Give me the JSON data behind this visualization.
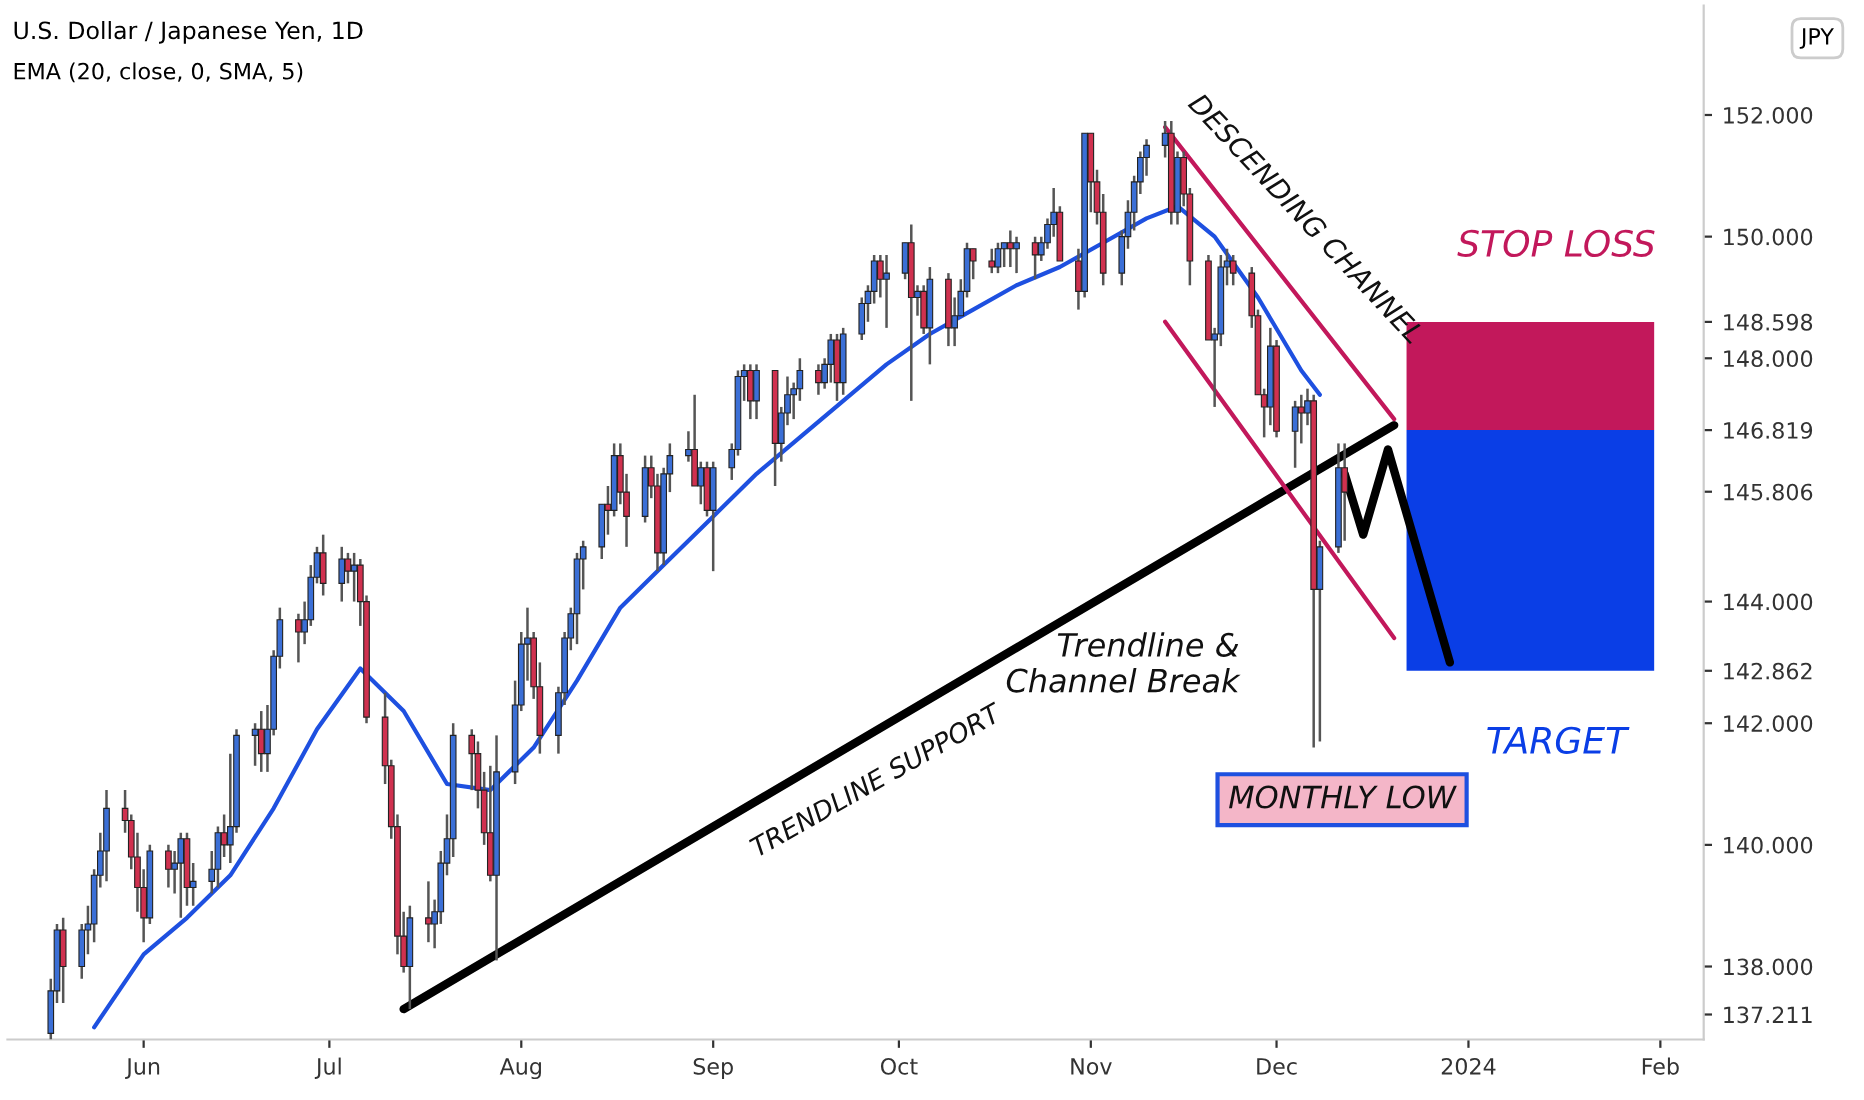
{
  "chart_data": {
    "type": "candlestick",
    "title": "U.S. Dollar / Japanese Yen, 1D",
    "subtitle": "EMA (20, close, 0, SMA, 5)",
    "ylabel": "JPY",
    "x": [
      "2023-05-17",
      "2023-05-18",
      "2023-05-19",
      "2023-05-22",
      "2023-05-23",
      "2023-05-24",
      "2023-05-25",
      "2023-05-26",
      "2023-05-29",
      "2023-05-30",
      "2023-05-31",
      "2023-06-01",
      "2023-06-02",
      "2023-06-05",
      "2023-06-06",
      "2023-06-07",
      "2023-06-08",
      "2023-06-09",
      "2023-06-12",
      "2023-06-13",
      "2023-06-14",
      "2023-06-15",
      "2023-06-16",
      "2023-06-19",
      "2023-06-20",
      "2023-06-21",
      "2023-06-22",
      "2023-06-23",
      "2023-06-26",
      "2023-06-27",
      "2023-06-28",
      "2023-06-29",
      "2023-06-30",
      "2023-07-03",
      "2023-07-04",
      "2023-07-05",
      "2023-07-06",
      "2023-07-07",
      "2023-07-10",
      "2023-07-11",
      "2023-07-12",
      "2023-07-13",
      "2023-07-14",
      "2023-07-17",
      "2023-07-18",
      "2023-07-19",
      "2023-07-20",
      "2023-07-21",
      "2023-07-24",
      "2023-07-25",
      "2023-07-26",
      "2023-07-27",
      "2023-07-28",
      "2023-07-31",
      "2023-08-01",
      "2023-08-02",
      "2023-08-03",
      "2023-08-04",
      "2023-08-07",
      "2023-08-08",
      "2023-08-09",
      "2023-08-10",
      "2023-08-11",
      "2023-08-14",
      "2023-08-15",
      "2023-08-16",
      "2023-08-17",
      "2023-08-18",
      "2023-08-21",
      "2023-08-22",
      "2023-08-23",
      "2023-08-24",
      "2023-08-25",
      "2023-08-28",
      "2023-08-29",
      "2023-08-30",
      "2023-08-31",
      "2023-09-01",
      "2023-09-04",
      "2023-09-05",
      "2023-09-06",
      "2023-09-07",
      "2023-09-08",
      "2023-09-11",
      "2023-09-12",
      "2023-09-13",
      "2023-09-14",
      "2023-09-15",
      "2023-09-18",
      "2023-09-19",
      "2023-09-20",
      "2023-09-21",
      "2023-09-22",
      "2023-09-25",
      "2023-09-26",
      "2023-09-27",
      "2023-09-28",
      "2023-09-29",
      "2023-10-02",
      "2023-10-03",
      "2023-10-04",
      "2023-10-05",
      "2023-10-06",
      "2023-10-09",
      "2023-10-10",
      "2023-10-11",
      "2023-10-12",
      "2023-10-13",
      "2023-10-16",
      "2023-10-17",
      "2023-10-18",
      "2023-10-19",
      "2023-10-20",
      "2023-10-23",
      "2023-10-24",
      "2023-10-25",
      "2023-10-26",
      "2023-10-27",
      "2023-10-30",
      "2023-10-31",
      "2023-11-01",
      "2023-11-02",
      "2023-11-03",
      "2023-11-06",
      "2023-11-07",
      "2023-11-08",
      "2023-11-09",
      "2023-11-10",
      "2023-11-13",
      "2023-11-14",
      "2023-11-15",
      "2023-11-16",
      "2023-11-17",
      "2023-11-20",
      "2023-11-21",
      "2023-11-22",
      "2023-11-23",
      "2023-11-24",
      "2023-11-27",
      "2023-11-28",
      "2023-11-29",
      "2023-11-30",
      "2023-12-01",
      "2023-12-04",
      "2023-12-05",
      "2023-12-06",
      "2023-12-07",
      "2023-12-08",
      "2023-12-11",
      "2023-12-12"
    ],
    "ohlc": [
      [
        136.9,
        137.8,
        136.8,
        137.6
      ],
      [
        137.6,
        138.7,
        137.4,
        138.6
      ],
      [
        138.6,
        138.8,
        137.4,
        138.0
      ],
      [
        138.0,
        138.7,
        137.8,
        138.6
      ],
      [
        138.6,
        139.0,
        138.2,
        138.7
      ],
      [
        138.7,
        139.6,
        138.4,
        139.5
      ],
      [
        139.5,
        140.2,
        139.3,
        139.9
      ],
      [
        139.9,
        140.9,
        139.4,
        140.6
      ],
      [
        140.6,
        140.9,
        140.2,
        140.4
      ],
      [
        140.4,
        140.5,
        139.6,
        139.8
      ],
      [
        139.8,
        140.2,
        138.9,
        139.3
      ],
      [
        139.3,
        139.6,
        138.4,
        138.8
      ],
      [
        138.8,
        140.0,
        138.7,
        139.9
      ],
      [
        139.9,
        140.0,
        139.3,
        139.6
      ],
      [
        139.6,
        139.9,
        139.2,
        139.7
      ],
      [
        139.7,
        140.2,
        138.8,
        140.1
      ],
      [
        140.1,
        140.2,
        139.0,
        139.3
      ],
      [
        139.3,
        139.7,
        139.0,
        139.4
      ],
      [
        139.4,
        139.9,
        139.2,
        139.6
      ],
      [
        139.6,
        140.3,
        139.3,
        140.2
      ],
      [
        140.2,
        140.5,
        139.8,
        140.0
      ],
      [
        140.0,
        141.5,
        139.7,
        140.3
      ],
      [
        140.3,
        141.9,
        140.2,
        141.8
      ],
      [
        141.8,
        142.0,
        141.3,
        141.9
      ],
      [
        141.9,
        142.2,
        141.2,
        141.5
      ],
      [
        141.5,
        142.3,
        141.2,
        141.9
      ],
      [
        141.9,
        143.2,
        141.8,
        143.1
      ],
      [
        143.1,
        143.9,
        142.9,
        143.7
      ],
      [
        143.7,
        143.8,
        143.0,
        143.5
      ],
      [
        143.5,
        144.0,
        143.3,
        143.7
      ],
      [
        143.7,
        144.6,
        143.6,
        144.4
      ],
      [
        144.4,
        144.9,
        144.3,
        144.8
      ],
      [
        144.8,
        145.1,
        144.1,
        144.3
      ],
      [
        144.3,
        144.9,
        144.0,
        144.7
      ],
      [
        144.7,
        144.8,
        144.3,
        144.5
      ],
      [
        144.5,
        144.8,
        144.0,
        144.6
      ],
      [
        144.6,
        144.7,
        143.6,
        144.0
      ],
      [
        144.0,
        144.1,
        142.0,
        142.1
      ],
      [
        142.1,
        142.5,
        141.0,
        141.3
      ],
      [
        141.3,
        141.4,
        140.1,
        140.3
      ],
      [
        140.3,
        140.5,
        138.2,
        138.5
      ],
      [
        138.5,
        138.9,
        137.9,
        138.0
      ],
      [
        138.0,
        139.0,
        137.3,
        138.8
      ],
      [
        138.8,
        139.4,
        138.4,
        138.7
      ],
      [
        138.7,
        139.1,
        138.3,
        138.9
      ],
      [
        138.9,
        139.9,
        138.7,
        139.7
      ],
      [
        139.7,
        140.5,
        139.5,
        140.1
      ],
      [
        140.1,
        142.0,
        139.8,
        141.8
      ],
      [
        141.8,
        141.9,
        140.9,
        141.5
      ],
      [
        141.5,
        141.7,
        140.6,
        140.9
      ],
      [
        140.9,
        141.2,
        140.0,
        140.2
      ],
      [
        140.2,
        141.3,
        139.4,
        139.5
      ],
      [
        139.5,
        141.8,
        138.1,
        141.2
      ],
      [
        141.2,
        142.7,
        141.0,
        142.3
      ],
      [
        142.3,
        143.5,
        142.2,
        143.3
      ],
      [
        143.3,
        143.9,
        142.7,
        143.4
      ],
      [
        143.4,
        143.5,
        142.4,
        142.6
      ],
      [
        142.6,
        143.0,
        141.5,
        141.8
      ],
      [
        141.8,
        142.6,
        141.5,
        142.5
      ],
      [
        142.5,
        143.5,
        142.3,
        143.4
      ],
      [
        143.4,
        143.9,
        143.2,
        143.8
      ],
      [
        143.8,
        144.8,
        143.3,
        144.7
      ],
      [
        144.7,
        145.0,
        144.2,
        144.9
      ],
      [
        144.9,
        145.6,
        144.7,
        145.6
      ],
      [
        145.6,
        145.9,
        145.1,
        145.5
      ],
      [
        145.5,
        146.6,
        145.4,
        146.4
      ],
      [
        146.4,
        146.6,
        145.6,
        145.8
      ],
      [
        145.8,
        146.1,
        144.9,
        145.4
      ],
      [
        145.4,
        146.4,
        145.3,
        146.2
      ],
      [
        146.2,
        146.4,
        145.7,
        145.9
      ],
      [
        145.9,
        146.1,
        144.5,
        144.8
      ],
      [
        144.8,
        146.2,
        144.6,
        146.1
      ],
      [
        146.1,
        146.6,
        145.8,
        146.4
      ],
      [
        146.4,
        146.8,
        146.3,
        146.5
      ],
      [
        146.5,
        147.4,
        145.9,
        145.9
      ],
      [
        145.9,
        146.3,
        145.6,
        146.2
      ],
      [
        146.2,
        146.3,
        145.4,
        145.5
      ],
      [
        145.5,
        146.3,
        144.5,
        146.2
      ],
      [
        146.2,
        146.6,
        146.0,
        146.5
      ],
      [
        146.5,
        147.8,
        146.4,
        147.7
      ],
      [
        147.7,
        147.9,
        147.3,
        147.8
      ],
      [
        147.8,
        147.9,
        147.0,
        147.3
      ],
      [
        147.3,
        147.9,
        147.0,
        147.8
      ],
      [
        147.8,
        147.8,
        145.9,
        146.6
      ],
      [
        146.6,
        147.2,
        146.3,
        147.1
      ],
      [
        147.1,
        147.7,
        146.9,
        147.4
      ],
      [
        147.4,
        147.6,
        147.0,
        147.5
      ],
      [
        147.5,
        148.0,
        147.3,
        147.8
      ],
      [
        147.8,
        147.9,
        147.4,
        147.6
      ],
      [
        147.6,
        148.0,
        147.5,
        147.9
      ],
      [
        147.9,
        148.4,
        147.6,
        148.3
      ],
      [
        148.3,
        148.4,
        147.3,
        147.6
      ],
      [
        147.6,
        148.5,
        147.4,
        148.4
      ],
      [
        148.4,
        149.0,
        148.3,
        148.9
      ],
      [
        148.9,
        149.2,
        148.6,
        149.1
      ],
      [
        149.1,
        149.7,
        148.9,
        149.6
      ],
      [
        149.6,
        149.7,
        149.0,
        149.3
      ],
      [
        149.3,
        149.7,
        148.5,
        149.4
      ],
      [
        149.4,
        149.9,
        149.3,
        149.9
      ],
      [
        149.9,
        150.2,
        147.3,
        149.0
      ],
      [
        149.0,
        149.2,
        148.7,
        149.1
      ],
      [
        149.1,
        149.2,
        148.4,
        148.5
      ],
      [
        148.5,
        149.5,
        147.9,
        149.3
      ],
      [
        149.3,
        149.4,
        148.2,
        148.5
      ],
      [
        148.5,
        149.0,
        148.2,
        148.7
      ],
      [
        148.7,
        149.3,
        148.7,
        149.1
      ],
      [
        149.1,
        149.9,
        149.0,
        149.8
      ],
      [
        149.8,
        149.8,
        149.3,
        149.6
      ],
      [
        149.6,
        149.8,
        149.4,
        149.5
      ],
      [
        149.5,
        149.9,
        149.4,
        149.8
      ],
      [
        149.8,
        149.9,
        149.5,
        149.9
      ],
      [
        149.9,
        150.1,
        149.5,
        149.8
      ],
      [
        149.8,
        150.0,
        149.4,
        149.9
      ],
      [
        149.9,
        150.0,
        149.3,
        149.7
      ],
      [
        149.7,
        150.0,
        149.6,
        149.9
      ],
      [
        149.9,
        150.3,
        149.8,
        150.2
      ],
      [
        150.2,
        150.8,
        150.0,
        150.4
      ],
      [
        150.4,
        150.5,
        149.6,
        149.6
      ],
      [
        149.6,
        149.8,
        148.8,
        149.1
      ],
      [
        149.1,
        151.7,
        149.0,
        151.7
      ],
      [
        151.7,
        151.7,
        150.4,
        150.9
      ],
      [
        150.9,
        151.1,
        150.2,
        150.4
      ],
      [
        150.4,
        150.7,
        149.2,
        149.4
      ],
      [
        149.4,
        150.1,
        149.2,
        150.0
      ],
      [
        150.0,
        150.6,
        149.8,
        150.4
      ],
      [
        150.4,
        151.0,
        150.1,
        150.9
      ],
      [
        150.9,
        151.4,
        150.7,
        151.3
      ],
      [
        151.3,
        151.6,
        151.0,
        151.5
      ],
      [
        151.5,
        151.9,
        151.3,
        151.7
      ],
      [
        151.7,
        151.9,
        150.2,
        150.4
      ],
      [
        150.4,
        151.4,
        150.2,
        151.3
      ],
      [
        151.3,
        151.4,
        150.5,
        150.7
      ],
      [
        150.7,
        150.8,
        149.2,
        149.6
      ],
      [
        149.6,
        149.7,
        148.3,
        148.3
      ],
      [
        148.3,
        148.5,
        147.2,
        148.4
      ],
      [
        148.4,
        149.7,
        148.2,
        149.5
      ],
      [
        149.5,
        149.8,
        149.2,
        149.6
      ],
      [
        149.6,
        149.7,
        149.2,
        149.4
      ],
      [
        149.4,
        149.5,
        148.5,
        148.7
      ],
      [
        148.7,
        148.8,
        147.4,
        147.4
      ],
      [
        147.4,
        147.5,
        146.7,
        147.2
      ],
      [
        147.2,
        148.5,
        146.9,
        148.2
      ],
      [
        148.2,
        148.3,
        146.7,
        146.8
      ],
      [
        146.8,
        147.3,
        146.2,
        147.2
      ],
      [
        147.2,
        147.4,
        146.6,
        147.1
      ],
      [
        147.1,
        147.5,
        146.9,
        147.3
      ],
      [
        147.3,
        147.4,
        141.6,
        144.2
      ],
      [
        144.2,
        145.0,
        141.7,
        144.9
      ],
      [
        144.9,
        146.6,
        144.8,
        146.2
      ],
      [
        146.2,
        146.6,
        145.0,
        145.8
      ]
    ],
    "series": [
      {
        "type": "line",
        "color": "#1e50e0",
        "x": [
          "2023-05-24",
          "2023-06-01",
          "2023-06-08",
          "2023-06-15",
          "2023-06-22",
          "2023-06-29",
          "2023-07-06",
          "2023-07-13",
          "2023-07-20",
          "2023-07-27",
          "2023-08-03",
          "2023-08-10",
          "2023-08-17",
          "2023-08-24",
          "2023-09-01",
          "2023-09-08",
          "2023-09-15",
          "2023-09-22",
          "2023-09-29",
          "2023-10-06",
          "2023-10-13",
          "2023-10-20",
          "2023-10-27",
          "2023-11-03",
          "2023-11-10",
          "2023-11-15",
          "2023-11-21",
          "2023-11-28",
          "2023-12-05",
          "2023-12-08"
        ],
        "values": [
          137.0,
          138.2,
          138.8,
          139.5,
          140.6,
          141.9,
          142.9,
          142.2,
          141.0,
          140.9,
          141.6,
          142.7,
          143.9,
          144.6,
          145.4,
          146.1,
          146.7,
          147.3,
          147.9,
          148.4,
          148.8,
          149.2,
          149.5,
          149.9,
          150.3,
          150.5,
          150.0,
          149.0,
          147.8,
          147.4
        ]
      },
      {
        "type": "line",
        "color": "#000000",
        "x": [
          "2023-07-13",
          "2023-12-20"
        ],
        "values": [
          137.3,
          146.9
        ]
      },
      {
        "type": "line",
        "color": "#c2185b",
        "x": [
          "2023-11-13",
          "2023-12-20"
        ],
        "values": [
          151.8,
          147.0
        ]
      },
      {
        "type": "line",
        "color": "#c2185b",
        "x": [
          "2023-11-13",
          "2023-12-20"
        ],
        "values": [
          148.6,
          143.4
        ]
      },
      {
        "type": "line",
        "color": "#000000",
        "x": [
          "2023-12-12",
          "2023-12-15",
          "2023-12-19",
          "2023-12-29"
        ],
        "values": [
          146.1,
          145.1,
          146.5,
          143.0
        ]
      },
      {
        "type": "bar",
        "color": "#c2185b",
        "x": [
          "2024-01-11"
        ],
        "base": [
          146.819
        ],
        "values": [
          1.779
        ]
      },
      {
        "type": "bar",
        "color": "#0a3ee6",
        "x": [
          "2024-01-11"
        ],
        "base": [
          142.862
        ],
        "values": [
          3.957
        ]
      }
    ],
    "xlim": [
      "2023-05-10",
      "2024-02-08"
    ],
    "xticks": [
      {
        "value": "2023-06-01",
        "label": "Jun"
      },
      {
        "value": "2023-07-01",
        "label": "Jul"
      },
      {
        "value": "2023-08-01",
        "label": "Aug"
      },
      {
        "value": "2023-09-01",
        "label": "Sep"
      },
      {
        "value": "2023-10-01",
        "label": "Oct"
      },
      {
        "value": "2023-11-01",
        "label": "Nov"
      },
      {
        "value": "2023-12-01",
        "label": "Dec"
      },
      {
        "value": "2024-01-01",
        "label": "2024"
      },
      {
        "value": "2024-02-01",
        "label": "Feb"
      }
    ],
    "ylim": [
      136.8,
      153.8
    ],
    "yticks": [
      {
        "value": 137.211,
        "label": "137.211"
      },
      {
        "value": 138,
        "label": "138.000"
      },
      {
        "value": 140,
        "label": "140.000"
      },
      {
        "value": 142,
        "label": "142.000"
      },
      {
        "value": 142.862,
        "label": "142.862"
      },
      {
        "value": 144,
        "label": "144.000"
      },
      {
        "value": 145.806,
        "label": "145.806"
      },
      {
        "value": 146.819,
        "label": "146.819"
      },
      {
        "value": 148,
        "label": "148.000"
      },
      {
        "value": 148.598,
        "label": "148.598"
      },
      {
        "value": 150,
        "label": "150.000"
      },
      {
        "value": 152,
        "label": "152.000"
      }
    ],
    "annotations": [
      "DESCENDING CHANNEL",
      "STOP LOSS",
      "TARGET",
      "Trendline &\nChannel Break",
      "MONTHLY LOW",
      "TRENDLINE SUPPORT"
    ],
    "grid": false,
    "legend": false
  }
}
